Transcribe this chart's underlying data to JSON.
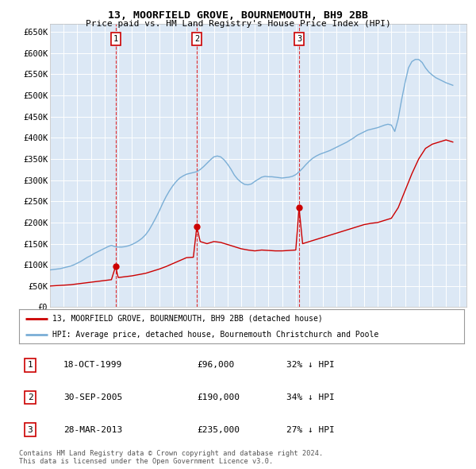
{
  "title": "13, MOORFIELD GROVE, BOURNEMOUTH, BH9 2BB",
  "subtitle": "Price paid vs. HM Land Registry's House Price Index (HPI)",
  "ylim": [
    0,
    670000
  ],
  "xlim_start": 1995.0,
  "xlim_end": 2025.5,
  "plot_bg_color": "#dce8f5",
  "transaction_dates": [
    1999.8,
    2005.75,
    2013.24
  ],
  "transaction_prices": [
    96000,
    190000,
    235000
  ],
  "transaction_labels": [
    "1",
    "2",
    "3"
  ],
  "transaction_info": [
    {
      "num": "1",
      "date": "18-OCT-1999",
      "price": "£96,000",
      "hpi": "32% ↓ HPI"
    },
    {
      "num": "2",
      "date": "30-SEP-2005",
      "price": "£190,000",
      "hpi": "34% ↓ HPI"
    },
    {
      "num": "3",
      "date": "28-MAR-2013",
      "price": "£235,000",
      "hpi": "27% ↓ HPI"
    }
  ],
  "legend_line1": "13, MOORFIELD GROVE, BOURNEMOUTH, BH9 2BB (detached house)",
  "legend_line2": "HPI: Average price, detached house, Bournemouth Christchurch and Poole",
  "footnote1": "Contains HM Land Registry data © Crown copyright and database right 2024.",
  "footnote2": "This data is licensed under the Open Government Licence v3.0.",
  "hpi_x": [
    1995.0,
    1995.25,
    1995.5,
    1995.75,
    1996.0,
    1996.25,
    1996.5,
    1996.75,
    1997.0,
    1997.25,
    1997.5,
    1997.75,
    1998.0,
    1998.25,
    1998.5,
    1998.75,
    1999.0,
    1999.25,
    1999.5,
    1999.75,
    2000.0,
    2000.25,
    2000.5,
    2000.75,
    2001.0,
    2001.25,
    2001.5,
    2001.75,
    2002.0,
    2002.25,
    2002.5,
    2002.75,
    2003.0,
    2003.25,
    2003.5,
    2003.75,
    2004.0,
    2004.25,
    2004.5,
    2004.75,
    2005.0,
    2005.25,
    2005.5,
    2005.75,
    2006.0,
    2006.25,
    2006.5,
    2006.75,
    2007.0,
    2007.25,
    2007.5,
    2007.75,
    2008.0,
    2008.25,
    2008.5,
    2008.75,
    2009.0,
    2009.25,
    2009.5,
    2009.75,
    2010.0,
    2010.25,
    2010.5,
    2010.75,
    2011.0,
    2011.25,
    2011.5,
    2011.75,
    2012.0,
    2012.25,
    2012.5,
    2012.75,
    2013.0,
    2013.25,
    2013.5,
    2013.75,
    2014.0,
    2014.25,
    2014.5,
    2014.75,
    2015.0,
    2015.25,
    2015.5,
    2015.75,
    2016.0,
    2016.25,
    2016.5,
    2016.75,
    2017.0,
    2017.25,
    2017.5,
    2017.75,
    2018.0,
    2018.25,
    2018.5,
    2018.75,
    2019.0,
    2019.25,
    2019.5,
    2019.75,
    2020.0,
    2020.25,
    2020.5,
    2020.75,
    2021.0,
    2021.25,
    2021.5,
    2021.75,
    2022.0,
    2022.25,
    2022.5,
    2022.75,
    2023.0,
    2023.25,
    2023.5,
    2023.75,
    2024.0,
    2024.25,
    2024.5
  ],
  "hpi_y": [
    88000,
    89000,
    90000,
    91000,
    93000,
    95000,
    97000,
    100000,
    104000,
    108000,
    113000,
    118000,
    122000,
    127000,
    131000,
    135000,
    139000,
    143000,
    146000,
    143000,
    142000,
    142000,
    143000,
    145000,
    148000,
    152000,
    157000,
    163000,
    171000,
    182000,
    196000,
    211000,
    227000,
    245000,
    261000,
    275000,
    287000,
    297000,
    305000,
    310000,
    314000,
    316000,
    318000,
    320000,
    325000,
    332000,
    340000,
    348000,
    355000,
    357000,
    355000,
    348000,
    338000,
    326000,
    312000,
    302000,
    295000,
    290000,
    289000,
    291000,
    297000,
    302000,
    307000,
    309000,
    308000,
    308000,
    307000,
    306000,
    305000,
    306000,
    307000,
    309000,
    313000,
    320000,
    328000,
    337000,
    345000,
    352000,
    357000,
    361000,
    364000,
    367000,
    370000,
    374000,
    378000,
    382000,
    386000,
    390000,
    395000,
    400000,
    406000,
    410000,
    414000,
    418000,
    420000,
    422000,
    424000,
    427000,
    430000,
    432000,
    430000,
    415000,
    445000,
    490000,
    530000,
    565000,
    580000,
    585000,
    585000,
    578000,
    565000,
    555000,
    548000,
    542000,
    538000,
    534000,
    530000,
    527000,
    524000
  ],
  "red_x": [
    1995.0,
    1995.5,
    1996.0,
    1996.5,
    1997.0,
    1997.5,
    1998.0,
    1998.5,
    1999.0,
    1999.5,
    1999.8,
    2000.0,
    2000.5,
    2001.0,
    2001.5,
    2002.0,
    2002.5,
    2003.0,
    2003.5,
    2004.0,
    2004.5,
    2005.0,
    2005.5,
    2005.75,
    2006.0,
    2006.5,
    2007.0,
    2007.5,
    2008.0,
    2008.5,
    2009.0,
    2009.5,
    2010.0,
    2010.5,
    2011.0,
    2011.5,
    2012.0,
    2012.5,
    2013.0,
    2013.24,
    2013.5,
    2014.0,
    2014.5,
    2015.0,
    2015.5,
    2016.0,
    2016.5,
    2017.0,
    2017.5,
    2018.0,
    2018.5,
    2019.0,
    2019.5,
    2020.0,
    2020.5,
    2021.0,
    2021.5,
    2022.0,
    2022.5,
    2023.0,
    2023.5,
    2024.0,
    2024.5
  ],
  "red_y": [
    50000,
    51000,
    52000,
    53000,
    55000,
    57000,
    59000,
    61000,
    63000,
    65000,
    96000,
    70000,
    72000,
    74000,
    77000,
    80000,
    85000,
    90000,
    96000,
    103000,
    110000,
    117000,
    118000,
    190000,
    155000,
    150000,
    155000,
    153000,
    148000,
    143000,
    138000,
    135000,
    133000,
    135000,
    134000,
    133000,
    133000,
    134000,
    135000,
    235000,
    150000,
    155000,
    160000,
    165000,
    170000,
    175000,
    180000,
    185000,
    190000,
    195000,
    198000,
    200000,
    205000,
    210000,
    235000,
    275000,
    315000,
    350000,
    375000,
    385000,
    390000,
    395000,
    390000
  ]
}
